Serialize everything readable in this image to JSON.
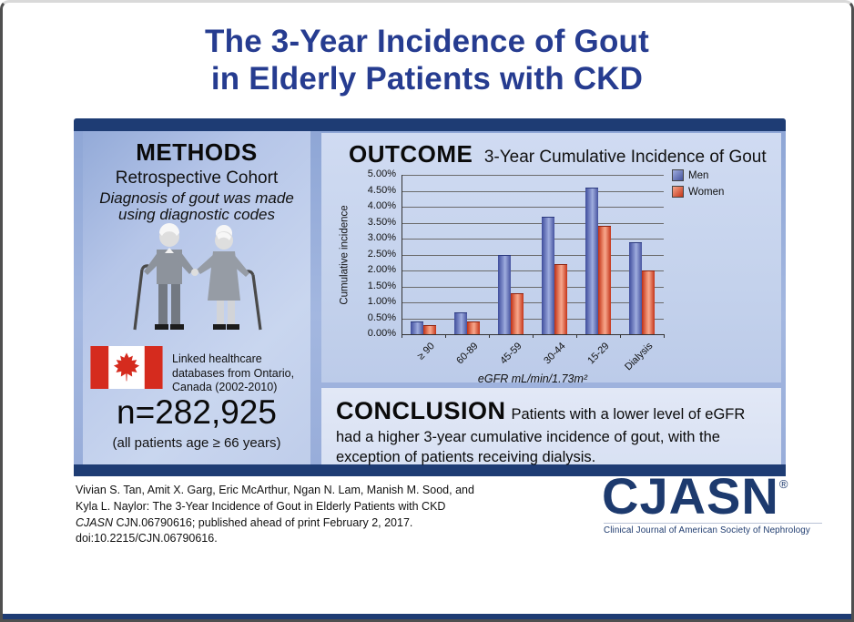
{
  "title": {
    "line1": "The 3-Year Incidence of Gout",
    "line2": "in Elderly Patients with CKD"
  },
  "methods": {
    "heading": "METHODS",
    "subheading": "Retrospective Cohort",
    "detail": "Diagnosis of gout was made using diagnostic codes",
    "datasource": "Linked healthcare databases from Ontario, Canada (2002-2010)",
    "n_value": "n=282,925",
    "n_note": "(all patients age ≥ 66 years)"
  },
  "outcome": {
    "heading": "OUTCOME",
    "subtitle": "3-Year Cumulative Incidence of Gout"
  },
  "chart_data": {
    "type": "bar",
    "title": "3-Year Cumulative Incidence of Gout",
    "categories": [
      "≥ 90",
      "60-89",
      "45-59",
      "30-44",
      "15-29",
      "Dialysis"
    ],
    "series": [
      {
        "name": "Men",
        "color": "#4a57a5",
        "values": [
          0.4,
          0.7,
          2.5,
          3.7,
          4.6,
          2.9
        ]
      },
      {
        "name": "Women",
        "color": "#d2391f",
        "values": [
          0.3,
          0.4,
          1.3,
          2.2,
          3.4,
          2.0
        ]
      }
    ],
    "ylabel": "Cumulative incidence",
    "xlabel": "eGFR mL/min/1.73m²",
    "ylim": [
      0,
      5
    ],
    "ytick_step": 0.5,
    "ytick_format": "percent2",
    "grid": true,
    "legend_position": "top-right"
  },
  "conclusion": {
    "heading": "CONCLUSION",
    "text": "Patients with a lower level of eGFR had a higher 3-year cumulative incidence of gout, with the exception of patients receiving dialysis."
  },
  "footer": {
    "citation_part1": "Vivian S. Tan, Amit X. Garg, Eric McArthur, Ngan N. Lam, Manish M. Sood, and Kyla L. Naylor: The 3-Year Incidence of Gout in Elderly Patients with CKD ",
    "citation_journal": "CJASN",
    "citation_part2": " CJN.06790616; published ahead of print February 2, 2017. doi:10.2215/CJN.06790616.",
    "logo_text": "CJASN",
    "logo_reg": "®",
    "logo_tagline": "Clinical Journal of American Society of Nephrology"
  },
  "colors": {
    "title_navy": "#263c90",
    "bar_navy": "#1e3c74",
    "background_blue": "#9bb0db",
    "methods_panel_blue": "#c2d0ec",
    "outcome_panel_blue": "#c8d5ee",
    "conclusion_panel_blue": "#dde5f4",
    "men_blue": "#4a57a5",
    "women_red": "#d2391f",
    "logo_navy": "#1d3a6e"
  }
}
